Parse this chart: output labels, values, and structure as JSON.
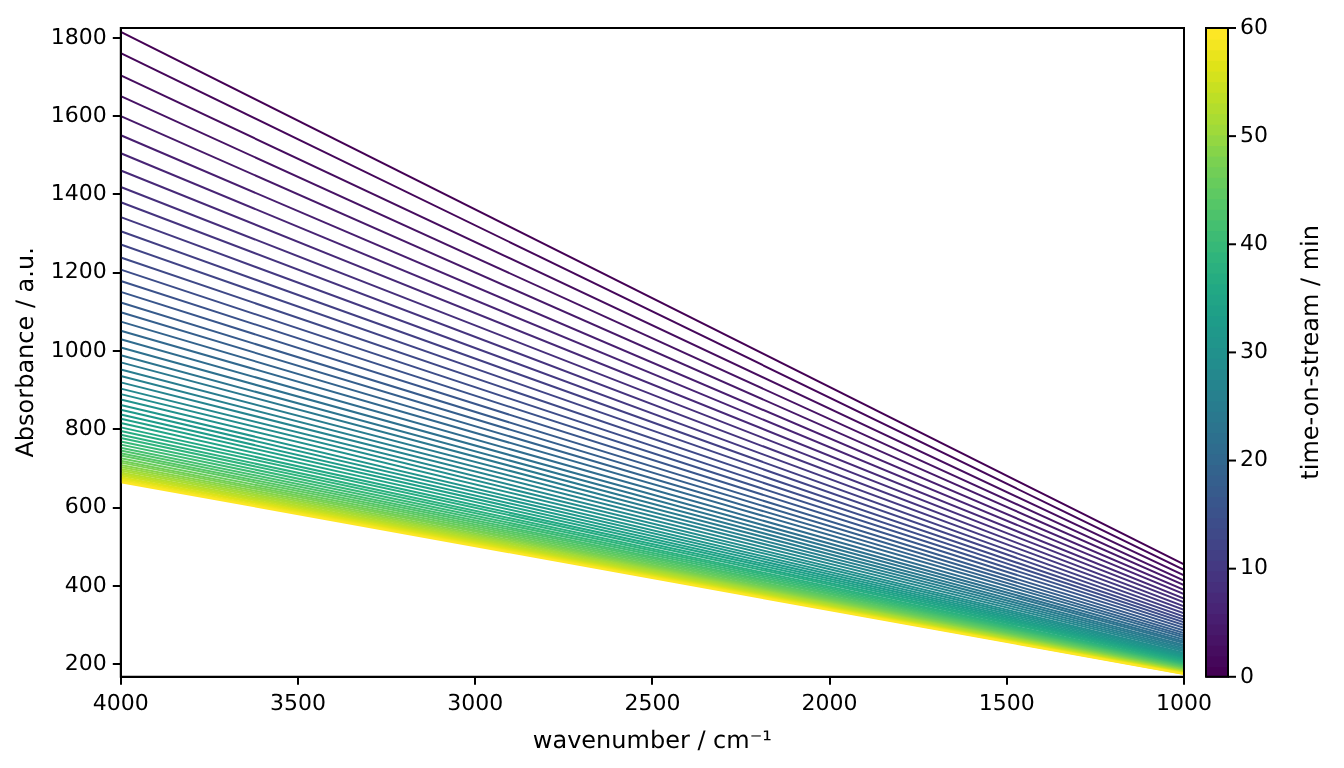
{
  "chart_data": {
    "type": "line",
    "xlabel": "wavenumber / cm⁻¹",
    "ylabel": "Absorbance / a.u.",
    "clabel": "time-on-stream / min",
    "clim": [
      0,
      60
    ],
    "cticks": [
      0,
      10,
      20,
      30,
      40,
      50,
      60
    ],
    "x": [
      4000,
      1000
    ],
    "xlim": [
      4000,
      1000
    ],
    "xticks": [
      4000,
      3500,
      3000,
      2500,
      2000,
      1500,
      1000
    ],
    "ylim": [
      168,
      1825
    ],
    "yticks": [
      200,
      400,
      600,
      800,
      1000,
      1200,
      1400,
      1600,
      1800
    ],
    "grid": false,
    "legend": false,
    "marker": "none",
    "line_style": "solid",
    "series": [
      {
        "color": "#440154",
        "values": [
          1815,
          455
        ]
      },
      {
        "color": "#45075a",
        "values": [
          1761,
          441
        ]
      },
      {
        "color": "#460d5f",
        "values": [
          1704,
          427
        ]
      },
      {
        "color": "#471365",
        "values": [
          1651,
          414
        ]
      },
      {
        "color": "#47196a",
        "values": [
          1600,
          402
        ]
      },
      {
        "color": "#481e70",
        "values": [
          1551,
          390
        ]
      },
      {
        "color": "#482475",
        "values": [
          1505,
          379
        ]
      },
      {
        "color": "#472978",
        "values": [
          1461,
          368
        ]
      },
      {
        "color": "#462f7c",
        "values": [
          1419,
          358
        ]
      },
      {
        "color": "#45347f",
        "values": [
          1380,
          348
        ]
      },
      {
        "color": "#443982",
        "values": [
          1342,
          339
        ]
      },
      {
        "color": "#423f84",
        "values": [
          1306,
          330
        ]
      },
      {
        "color": "#414487",
        "values": [
          1272,
          322
        ]
      },
      {
        "color": "#3f4988",
        "values": [
          1239,
          314
        ]
      },
      {
        "color": "#3d4d8a",
        "values": [
          1208,
          307
        ]
      },
      {
        "color": "#3b528b",
        "values": [
          1179,
          300
        ]
      },
      {
        "color": "#39568c",
        "values": [
          1151,
          293
        ]
      },
      {
        "color": "#375b8c",
        "values": [
          1124,
          286
        ]
      },
      {
        "color": "#355f8d",
        "values": [
          1099,
          280
        ]
      },
      {
        "color": "#33638d",
        "values": [
          1075,
          274
        ]
      },
      {
        "color": "#31688e",
        "values": [
          1052,
          269
        ]
      },
      {
        "color": "#2f6c8e",
        "values": [
          1030,
          263
        ]
      },
      {
        "color": "#2d708e",
        "values": [
          1009,
          258
        ]
      },
      {
        "color": "#2c748e",
        "values": [
          989,
          254
        ]
      },
      {
        "color": "#2a788e",
        "values": [
          971,
          249
        ]
      },
      {
        "color": "#287c8e",
        "values": [
          953,
          245
        ]
      },
      {
        "color": "#27808e",
        "values": [
          936,
          241
        ]
      },
      {
        "color": "#25848e",
        "values": [
          920,
          237
        ]
      },
      {
        "color": "#24888d",
        "values": [
          904,
          233
        ]
      },
      {
        "color": "#228d8d",
        "values": [
          890,
          229
        ]
      },
      {
        "color": "#21918c",
        "values": [
          876,
          226
        ]
      },
      {
        "color": "#20958b",
        "values": [
          862,
          223
        ]
      },
      {
        "color": "#1f988a",
        "values": [
          850,
          220
        ]
      },
      {
        "color": "#1e9c89",
        "values": [
          838,
          217
        ]
      },
      {
        "color": "#1fa087",
        "values": [
          827,
          214
        ]
      },
      {
        "color": "#21a486",
        "values": [
          816,
          212
        ]
      },
      {
        "color": "#22a884",
        "values": [
          805,
          209
        ]
      },
      {
        "color": "#26ac81",
        "values": [
          796,
          207
        ]
      },
      {
        "color": "#2bb07f",
        "values": [
          786,
          204
        ]
      },
      {
        "color": "#2fb47c",
        "values": [
          778,
          202
        ]
      },
      {
        "color": "#36b878",
        "values": [
          769,
          200
        ]
      },
      {
        "color": "#3dbb74",
        "values": [
          761,
          198
        ]
      },
      {
        "color": "#44bf70",
        "values": [
          753,
          196
        ]
      },
      {
        "color": "#4dc26b",
        "values": [
          746,
          195
        ]
      },
      {
        "color": "#55c667",
        "values": [
          739,
          193
        ]
      },
      {
        "color": "#5ec962",
        "values": [
          733,
          191
        ]
      },
      {
        "color": "#67cc5c",
        "values": [
          726,
          190
        ]
      },
      {
        "color": "#71ce57",
        "values": [
          720,
          188
        ]
      },
      {
        "color": "#7ad151",
        "values": [
          715,
          187
        ]
      },
      {
        "color": "#86d449",
        "values": [
          709,
          186
        ]
      },
      {
        "color": "#93d742",
        "values": [
          704,
          184
        ]
      },
      {
        "color": "#9fda3a",
        "values": [
          699,
          183
        ]
      },
      {
        "color": "#a9dc33",
        "values": [
          695,
          182
        ]
      },
      {
        "color": "#b3dd2d",
        "values": [
          690,
          181
        ]
      },
      {
        "color": "#bddf26",
        "values": [
          686,
          180
        ]
      },
      {
        "color": "#c8e021",
        "values": [
          682,
          179
        ]
      },
      {
        "color": "#d4e21d",
        "values": [
          678,
          178
        ]
      },
      {
        "color": "#dfe318",
        "values": [
          675,
          177
        ]
      },
      {
        "color": "#e9e41c",
        "values": [
          671,
          177
        ]
      },
      {
        "color": "#f3e621",
        "values": [
          668,
          176
        ]
      },
      {
        "color": "#fde725",
        "values": [
          665,
          175
        ]
      }
    ]
  }
}
